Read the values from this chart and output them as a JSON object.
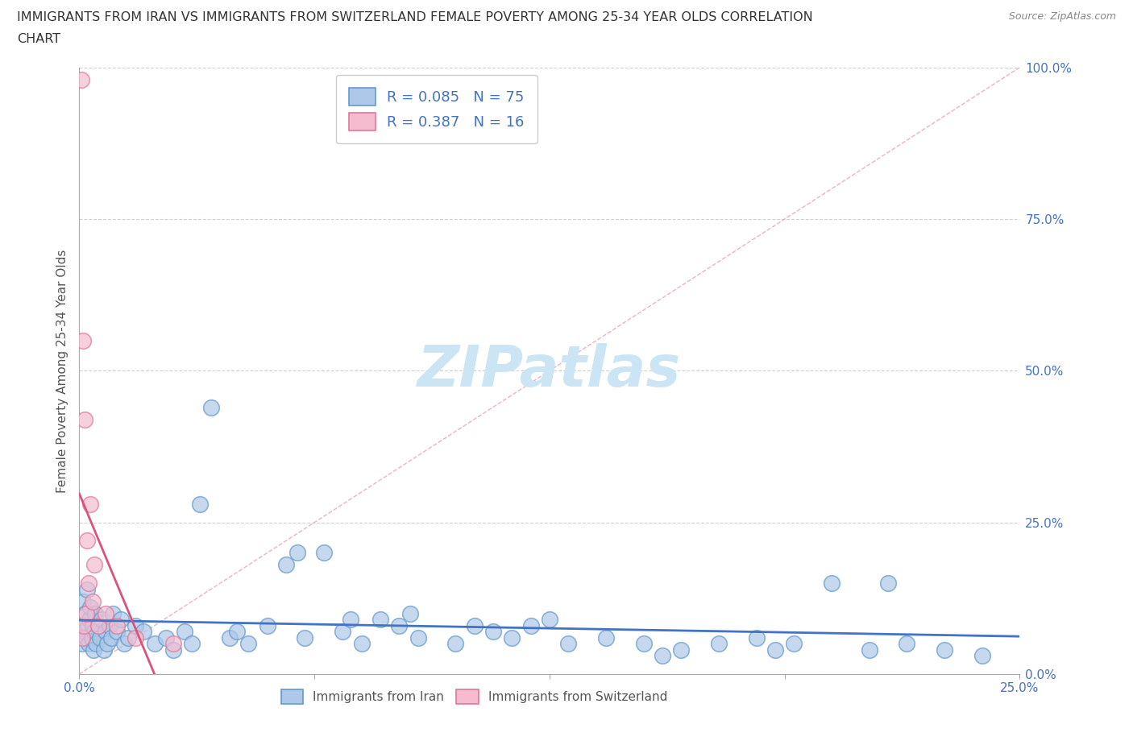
{
  "title_line1": "IMMIGRANTS FROM IRAN VS IMMIGRANTS FROM SWITZERLAND FEMALE POVERTY AMONG 25-34 YEAR OLDS CORRELATION",
  "title_line2": "CHART",
  "source": "Source: ZipAtlas.com",
  "ylabel": "Female Poverty Among 25-34 Year Olds",
  "ytick_vals": [
    0,
    25,
    50,
    75,
    100
  ],
  "xlim": [
    0,
    25
  ],
  "ylim": [
    0,
    100
  ],
  "iran_color": "#adc8e8",
  "iran_edge": "#6699cc",
  "swiss_color": "#f5bcd0",
  "swiss_edge": "#e07898",
  "trend_iran_color": "#4472c4",
  "trend_swiss_color": "#d9547a",
  "diag_color": "#e8a0b0",
  "watermark_color": "#cce5f5",
  "legend_iran_R": "0.085",
  "legend_iran_N": "75",
  "legend_swiss_R": "0.387",
  "legend_swiss_N": "16",
  "iran_x": [
    0.05,
    0.08,
    0.1,
    0.12,
    0.15,
    0.18,
    0.2,
    0.22,
    0.25,
    0.28,
    0.3,
    0.33,
    0.35,
    0.38,
    0.4,
    0.42,
    0.45,
    0.5,
    0.55,
    0.6,
    0.65,
    0.7,
    0.75,
    0.8,
    0.85,
    0.9,
    1.0,
    1.1,
    1.2,
    1.3,
    1.5,
    1.7,
    2.0,
    2.3,
    2.5,
    2.8,
    3.0,
    3.5,
    4.0,
    4.5,
    5.0,
    5.5,
    6.0,
    6.5,
    7.0,
    7.5,
    8.0,
    8.5,
    9.0,
    10.0,
    11.0,
    11.5,
    12.0,
    13.0,
    14.0,
    15.0,
    16.0,
    17.0,
    18.0,
    19.0,
    20.0,
    21.0,
    22.0,
    23.0,
    24.0,
    3.2,
    4.2,
    5.8,
    7.2,
    8.8,
    10.5,
    12.5,
    15.5,
    18.5,
    21.5
  ],
  "iran_y": [
    8,
    5,
    12,
    7,
    10,
    6,
    14,
    8,
    5,
    9,
    11,
    6,
    8,
    4,
    7,
    10,
    5,
    8,
    6,
    9,
    4,
    7,
    5,
    8,
    6,
    10,
    7,
    9,
    5,
    6,
    8,
    7,
    5,
    6,
    4,
    7,
    5,
    44,
    6,
    5,
    8,
    18,
    6,
    20,
    7,
    5,
    9,
    8,
    6,
    5,
    7,
    6,
    8,
    5,
    6,
    5,
    4,
    5,
    6,
    5,
    15,
    4,
    5,
    4,
    3,
    28,
    7,
    20,
    9,
    10,
    8,
    9,
    3,
    4,
    15
  ],
  "swiss_x": [
    0.05,
    0.08,
    0.1,
    0.12,
    0.15,
    0.18,
    0.2,
    0.25,
    0.3,
    0.35,
    0.4,
    0.5,
    0.7,
    1.0,
    1.5,
    2.5
  ],
  "swiss_y": [
    98,
    6,
    55,
    8,
    42,
    10,
    22,
    15,
    28,
    12,
    18,
    8,
    10,
    8,
    6,
    5
  ]
}
